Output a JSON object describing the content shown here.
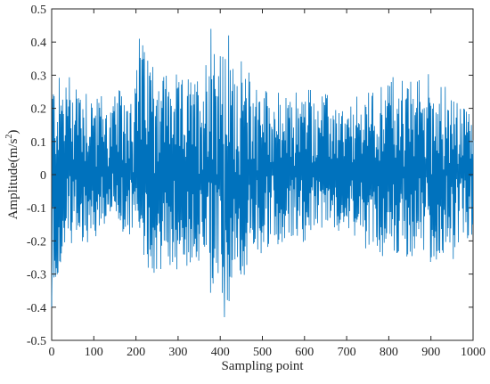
{
  "chart_data": {
    "type": "line",
    "title": "",
    "xlabel": "Sampling point",
    "ylabel_main": "Amplitude(m/s",
    "ylabel_sup": "2",
    "ylabel_close": ")",
    "xlim": [
      0,
      1000
    ],
    "ylim": [
      -0.5,
      0.5
    ],
    "xticks": [
      0,
      100,
      200,
      300,
      400,
      500,
      600,
      700,
      800,
      900,
      1000
    ],
    "yticks": [
      -0.5,
      -0.4,
      -0.3,
      -0.2,
      -0.1,
      0,
      0.1,
      0.2,
      0.3,
      0.4,
      0.5
    ],
    "xtick_labels": [
      "0",
      "100",
      "200",
      "300",
      "400",
      "500",
      "600",
      "700",
      "800",
      "900",
      "1000"
    ],
    "ytick_labels": [
      "-0.5",
      "-0.4",
      "-0.3",
      "-0.2",
      "-0.1",
      "0",
      "0.1",
      "0.2",
      "0.3",
      "0.4",
      "0.5"
    ],
    "grid": false,
    "line_color": "#0072BD",
    "envelope_x": [
      0,
      40,
      60,
      100,
      140,
      200,
      210,
      250,
      300,
      350,
      380,
      390,
      410,
      450,
      500,
      550,
      600,
      650,
      700,
      750,
      800,
      850,
      880,
      900,
      950,
      1000
    ],
    "envelope_max": [
      0.29,
      0.31,
      0.31,
      0.26,
      0.22,
      0.3,
      0.41,
      0.35,
      0.28,
      0.3,
      0.44,
      0.42,
      0.36,
      0.33,
      0.28,
      0.22,
      0.27,
      0.24,
      0.19,
      0.26,
      0.3,
      0.28,
      0.3,
      0.3,
      0.24,
      0.18
    ],
    "envelope_min": [
      -0.4,
      -0.2,
      -0.22,
      -0.2,
      -0.14,
      -0.2,
      -0.27,
      -0.3,
      -0.28,
      -0.26,
      -0.38,
      -0.3,
      -0.43,
      -0.31,
      -0.24,
      -0.2,
      -0.2,
      -0.15,
      -0.16,
      -0.21,
      -0.25,
      -0.26,
      -0.25,
      -0.28,
      -0.25,
      -0.21
    ],
    "highlighted_points": [
      {
        "x": 0,
        "y": -0.4
      },
      {
        "x": 208,
        "y": 0.41
      },
      {
        "x": 378,
        "y": 0.44
      },
      {
        "x": 410,
        "y": -0.43
      },
      {
        "x": 420,
        "y": 0.42
      }
    ]
  }
}
